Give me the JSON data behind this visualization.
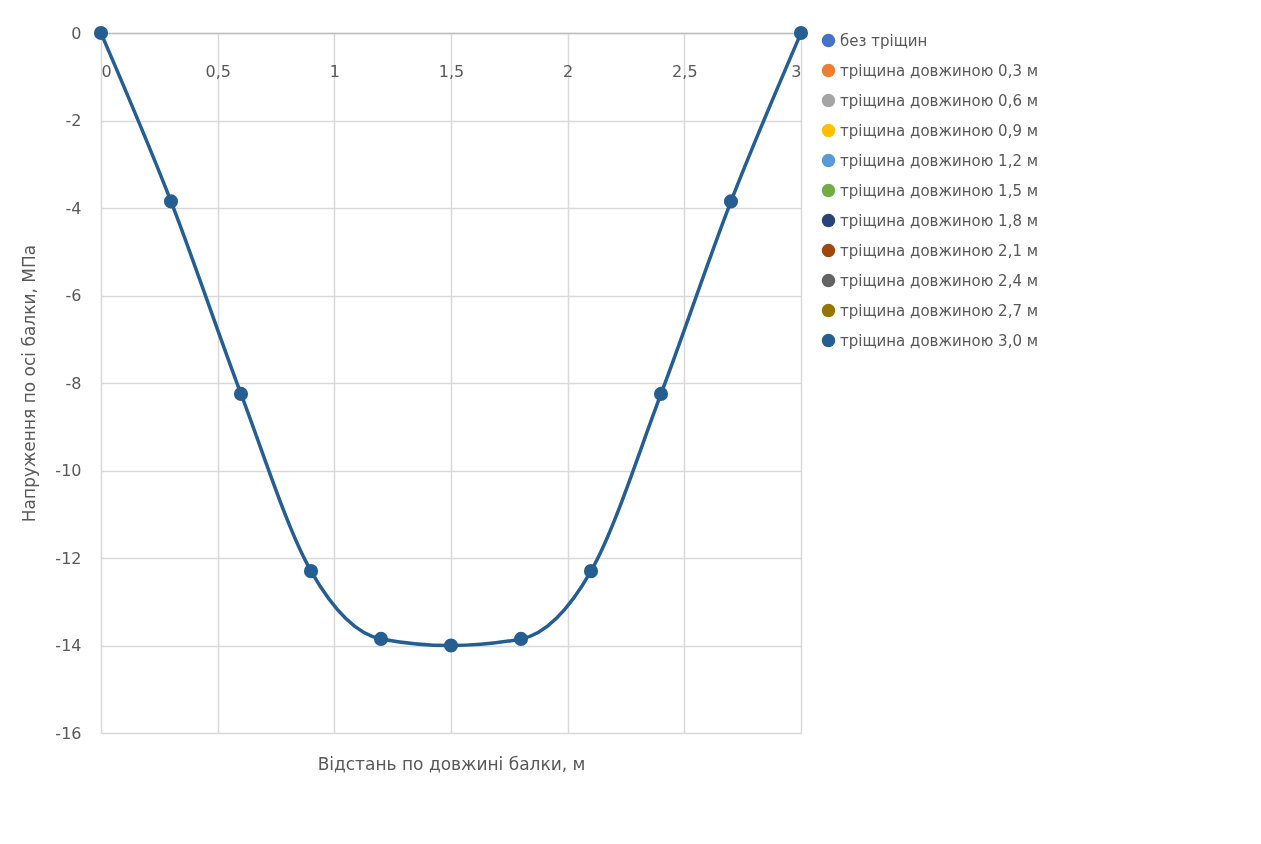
{
  "chart_data": {
    "type": "line",
    "xlabel": "Відстань по довжині балки, м",
    "ylabel": "Напруження по осі балки, МПа",
    "x": [
      0,
      0.3,
      0.6,
      0.9,
      1.2,
      1.5,
      1.8,
      2.1,
      2.4,
      2.7,
      3.0
    ],
    "xlim": [
      0,
      3
    ],
    "xticks": [
      0,
      {
        "value": 0.5,
        "label": "0,5"
      },
      1,
      {
        "value": 1.5,
        "label": "1,5"
      },
      2,
      {
        "value": 2.5,
        "label": "2,5"
      },
      3
    ],
    "ylim": [
      -16,
      0
    ],
    "yticks": [
      -16,
      -14,
      -12,
      -10,
      -8,
      -6,
      -4,
      -2,
      0
    ],
    "grid": true,
    "legend": "right",
    "marker": "circle",
    "line_style": "solid",
    "series": [
      {
        "name": "без тріщин",
        "color": "#4472c4",
        "values": [
          null,
          null,
          null,
          null,
          null,
          null,
          null,
          null,
          null,
          null,
          null
        ]
      },
      {
        "name": "тріщина довжиною 0,3 м",
        "color": "#ed7d31",
        "values": [
          null,
          null,
          null,
          null,
          null,
          null,
          null,
          null,
          null,
          null,
          null
        ]
      },
      {
        "name": "тріщина довжиною 0,6 м",
        "color": "#a5a5a5",
        "values": [
          null,
          null,
          null,
          null,
          null,
          null,
          null,
          null,
          null,
          null,
          null
        ]
      },
      {
        "name": "тріщина довжиною 0,9 м",
        "color": "#ffc000",
        "values": [
          null,
          null,
          null,
          null,
          null,
          null,
          null,
          null,
          null,
          null,
          null
        ]
      },
      {
        "name": "тріщина довжиною 1,2 м",
        "color": "#5b9bd5",
        "values": [
          null,
          null,
          null,
          null,
          null,
          null,
          null,
          null,
          null,
          null,
          null
        ]
      },
      {
        "name": "тріщина довжиною 1,5 м",
        "color": "#70ad47",
        "values": [
          null,
          null,
          null,
          null,
          null,
          null,
          null,
          null,
          null,
          null,
          null
        ]
      },
      {
        "name": "тріщина довжиною 1,8 м",
        "color": "#264478",
        "values": [
          null,
          null,
          null,
          null,
          null,
          null,
          null,
          null,
          null,
          null,
          null
        ]
      },
      {
        "name": "тріщина довжиною 2,1 м",
        "color": "#9e480e",
        "values": [
          null,
          null,
          null,
          null,
          null,
          null,
          null,
          null,
          null,
          null,
          null
        ]
      },
      {
        "name": "тріщина довжиною 2,4 м",
        "color": "#636363",
        "values": [
          null,
          null,
          null,
          null,
          null,
          null,
          null,
          null,
          null,
          null,
          null
        ]
      },
      {
        "name": "тріщина довжиною 2,7 м",
        "color": "#997300",
        "values": [
          null,
          null,
          null,
          null,
          null,
          null,
          null,
          null,
          null,
          null,
          null
        ]
      },
      {
        "name": "тріщина довжиною 3,0 м",
        "color": "#255e91",
        "values": [
          0,
          -3.85,
          -8.25,
          -12.3,
          -13.85,
          -14.0,
          -13.85,
          -12.3,
          -8.25,
          -3.85,
          0
        ]
      }
    ]
  }
}
